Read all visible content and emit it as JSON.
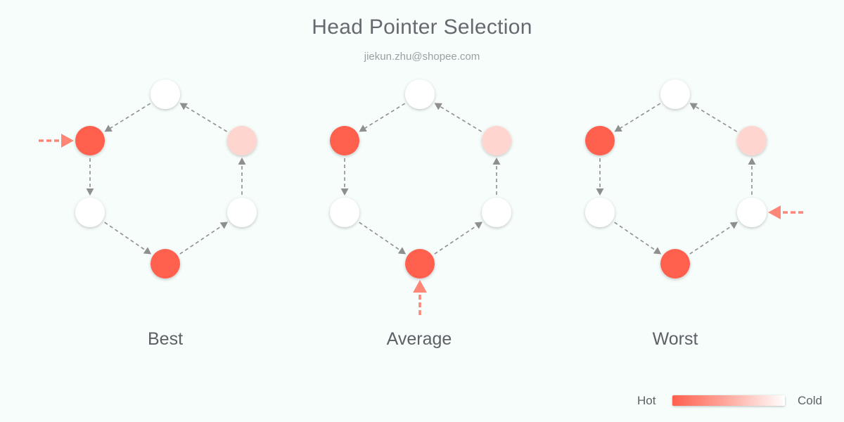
{
  "title": "Head Pointer Selection",
  "subtitle": "jiekun.zhu@shopee.com",
  "colors": {
    "hot": "#ff5f4e",
    "warm": "#ffd5cf",
    "cold": "#ffffff",
    "edge": "#8f8f8f",
    "pointer": "#ff8677"
  },
  "node_order": [
    "top",
    "upper-left",
    "lower-left",
    "bottom",
    "lower-right",
    "upper-right"
  ],
  "node_temperatures": [
    "cold",
    "hot",
    "cold",
    "hot",
    "cold",
    "warm"
  ],
  "edges": [
    [
      "top",
      "upper-left"
    ],
    [
      "upper-left",
      "lower-left"
    ],
    [
      "lower-left",
      "bottom"
    ],
    [
      "bottom",
      "lower-right"
    ],
    [
      "lower-right",
      "upper-right"
    ],
    [
      "upper-right",
      "top"
    ]
  ],
  "scenarios": [
    {
      "label": "Best",
      "head": "upper-left"
    },
    {
      "label": "Average",
      "head": "bottom"
    },
    {
      "label": "Worst",
      "head": "lower-right"
    }
  ],
  "legend": {
    "hot_label": "Hot",
    "cold_label": "Cold"
  }
}
